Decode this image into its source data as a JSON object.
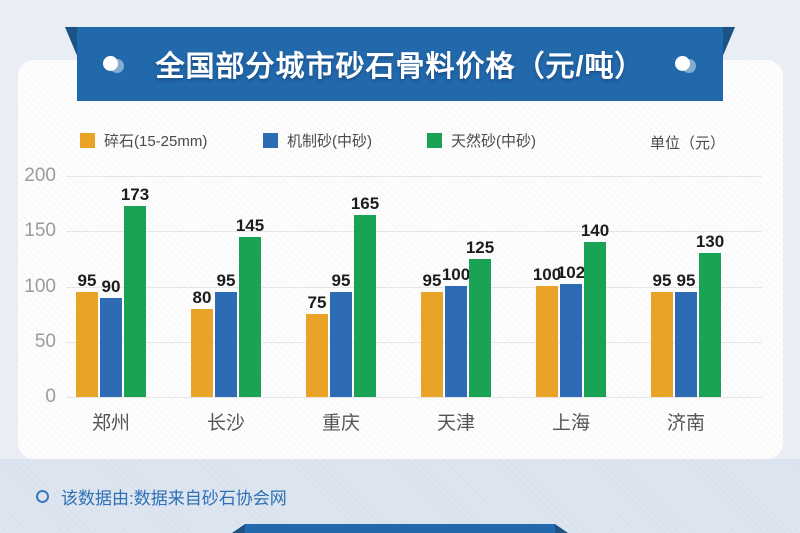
{
  "banner": {
    "title": "全国部分城市砂石骨料价格（元/吨）"
  },
  "legend": {
    "items": [
      {
        "label": "碎石(15-25mm)",
        "color": "#e9a428"
      },
      {
        "label": "机制砂(中砂)",
        "color": "#2d6cb5"
      },
      {
        "label": "天然砂(中砂)",
        "color": "#1aa354"
      }
    ],
    "unit_label": "单位（元）"
  },
  "chart_data": {
    "type": "bar",
    "title": "全国部分城市砂石骨料价格（元/吨）",
    "categories": [
      "郑州",
      "长沙",
      "重庆",
      "天津",
      "上海",
      "济南"
    ],
    "series": [
      {
        "name": "碎石(15-25mm)",
        "color": "#e9a428",
        "values": [
          95,
          80,
          75,
          95,
          100,
          95
        ]
      },
      {
        "name": "机制砂(中砂)",
        "color": "#2d6cb5",
        "values": [
          90,
          95,
          95,
          100,
          102,
          95
        ]
      },
      {
        "name": "天然砂(中砂)",
        "color": "#1aa354",
        "values": [
          173,
          145,
          165,
          125,
          140,
          130
        ]
      }
    ],
    "ylabel": "",
    "xlabel": "",
    "ylim": [
      0,
      200
    ],
    "yticks": [
      0,
      50,
      100,
      150,
      200
    ],
    "grid": true,
    "legend_position": "top",
    "value_labels": true
  },
  "footer": {
    "note": "该数据由:数据来自砂石协会网"
  },
  "colors": {
    "banner_blue": "#2269ac",
    "ribbon_fold": "#1d5286",
    "page_background": "#e9eef5",
    "card_background": "#fdfdfd",
    "footer_band": "#dde6f0",
    "footer_text": "#2e6fb5",
    "gridline": "#e6e6e6",
    "axis_tick_text": "#9b9b9b",
    "value_label_text": "#1c1c1c",
    "category_text": "#555555"
  }
}
